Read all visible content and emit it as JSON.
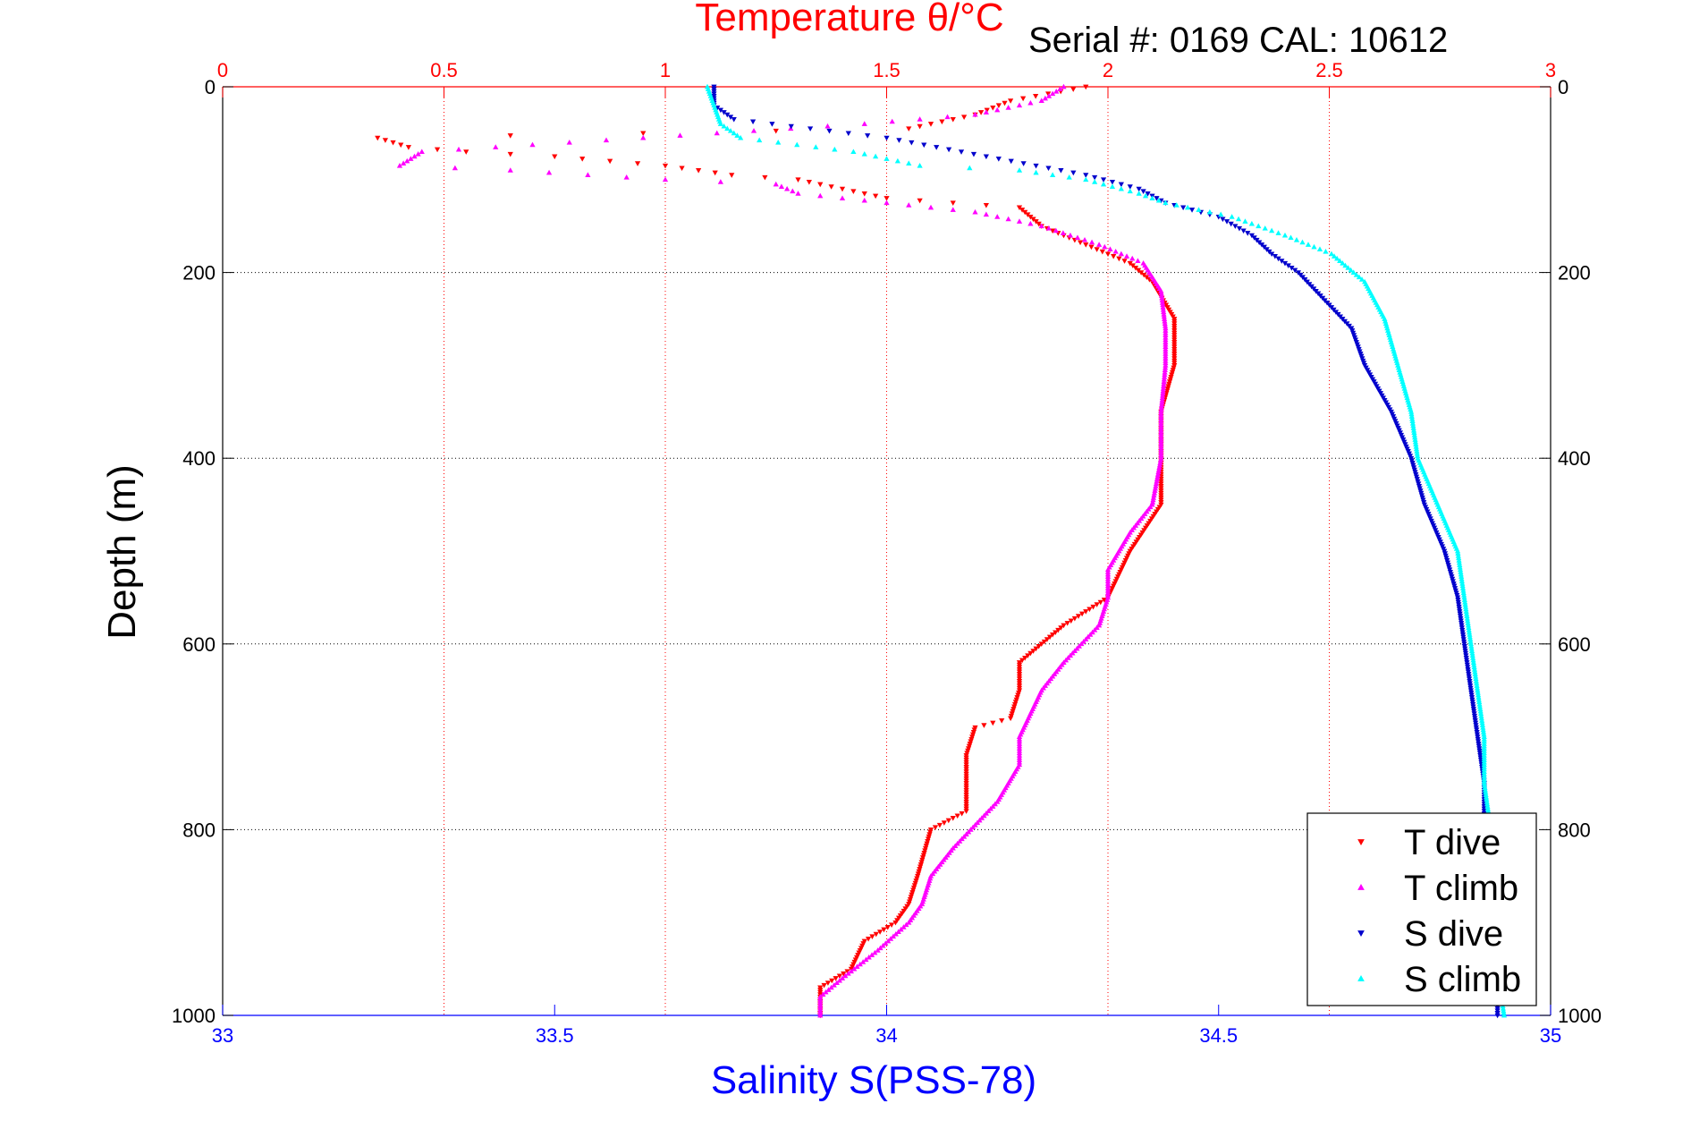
{
  "chart_data": {
    "type": "scatter",
    "title": "Temperature θ/°C",
    "annotation": "Serial #: 0169 CAL: 10612",
    "xlabel_top": "Temperature θ/°C",
    "xlabel_bottom": "Salinity S(PSS-78)",
    "ylabel": "Depth (m)",
    "temperature_axis": {
      "lim": [
        0,
        3
      ],
      "ticks": [
        0,
        0.5,
        1,
        1.5,
        2,
        2.5,
        3
      ],
      "tick_labels": [
        "0",
        "0.5",
        "1",
        "1.5",
        "2",
        "2.5",
        "3"
      ],
      "color": "#ff0000"
    },
    "salinity_axis": {
      "lim": [
        33,
        35
      ],
      "ticks": [
        33,
        33.5,
        34,
        34.5,
        35
      ],
      "tick_labels": [
        "33",
        "33.5",
        "34",
        "34.5",
        "35"
      ],
      "color": "#0000ff"
    },
    "depth_axis": {
      "lim": [
        0,
        1000
      ],
      "reversed": true,
      "ticks": [
        0,
        200,
        400,
        600,
        800,
        1000
      ],
      "tick_labels": [
        "0",
        "200",
        "400",
        "600",
        "800",
        "1000"
      ]
    },
    "grid": true,
    "legend_position": "bottom-right",
    "series": [
      {
        "name": "T dive",
        "axis": "temperature",
        "color": "#ff0000",
        "marker": "triangle-down",
        "points": [
          [
            1.95,
            0
          ],
          [
            1.78,
            15
          ],
          [
            1.7,
            30
          ],
          [
            1.55,
            45
          ],
          [
            0.35,
            55
          ],
          [
            0.42,
            65
          ],
          [
            0.55,
            70
          ],
          [
            0.75,
            75
          ],
          [
            1.0,
            85
          ],
          [
            1.15,
            95
          ],
          [
            1.3,
            100
          ],
          [
            1.4,
            110
          ],
          [
            1.5,
            120
          ],
          [
            1.65,
            125
          ],
          [
            1.8,
            130
          ],
          [
            1.85,
            150
          ],
          [
            1.95,
            170
          ],
          [
            2.05,
            190
          ],
          [
            2.1,
            210
          ],
          [
            2.15,
            250
          ],
          [
            2.15,
            300
          ],
          [
            2.12,
            350
          ],
          [
            2.12,
            400
          ],
          [
            2.12,
            450
          ],
          [
            2.05,
            500
          ],
          [
            2.0,
            550
          ],
          [
            1.9,
            580
          ],
          [
            1.85,
            600
          ],
          [
            1.8,
            620
          ],
          [
            1.8,
            650
          ],
          [
            1.78,
            680
          ],
          [
            1.7,
            690
          ],
          [
            1.68,
            720
          ],
          [
            1.68,
            750
          ],
          [
            1.68,
            780
          ],
          [
            1.6,
            800
          ],
          [
            1.57,
            850
          ],
          [
            1.55,
            880
          ],
          [
            1.52,
            900
          ],
          [
            1.45,
            920
          ],
          [
            1.42,
            950
          ],
          [
            1.35,
            970
          ],
          [
            1.35,
            1000
          ]
        ]
      },
      {
        "name": "T climb",
        "axis": "temperature",
        "color": "#ff00ff",
        "marker": "triangle-up",
        "points": [
          [
            1.9,
            0
          ],
          [
            1.85,
            15
          ],
          [
            1.7,
            30
          ],
          [
            1.45,
            40
          ],
          [
            0.45,
            70
          ],
          [
            0.4,
            85
          ],
          [
            0.65,
            90
          ],
          [
            1.0,
            100
          ],
          [
            1.25,
            105
          ],
          [
            1.3,
            115
          ],
          [
            1.5,
            125
          ],
          [
            1.7,
            135
          ],
          [
            1.85,
            150
          ],
          [
            1.98,
            170
          ],
          [
            2.08,
            190
          ],
          [
            2.12,
            220
          ],
          [
            2.13,
            260
          ],
          [
            2.13,
            300
          ],
          [
            2.12,
            350
          ],
          [
            2.12,
            400
          ],
          [
            2.1,
            450
          ],
          [
            2.05,
            480
          ],
          [
            2.0,
            520
          ],
          [
            2.0,
            550
          ],
          [
            1.98,
            580
          ],
          [
            1.9,
            620
          ],
          [
            1.85,
            650
          ],
          [
            1.82,
            680
          ],
          [
            1.8,
            700
          ],
          [
            1.8,
            730
          ],
          [
            1.75,
            770
          ],
          [
            1.65,
            820
          ],
          [
            1.6,
            850
          ],
          [
            1.58,
            880
          ],
          [
            1.55,
            900
          ],
          [
            1.48,
            930
          ],
          [
            1.4,
            960
          ],
          [
            1.35,
            980
          ],
          [
            1.35,
            1000
          ]
        ]
      },
      {
        "name": "S dive",
        "axis": "salinity",
        "color": "#0000cc",
        "marker": "triangle-down",
        "points": [
          [
            33.74,
            0
          ],
          [
            33.74,
            20
          ],
          [
            33.77,
            35
          ],
          [
            34.0,
            55
          ],
          [
            34.15,
            75
          ],
          [
            34.3,
            95
          ],
          [
            34.38,
            110
          ],
          [
            34.42,
            125
          ],
          [
            34.5,
            140
          ],
          [
            34.55,
            160
          ],
          [
            34.58,
            180
          ],
          [
            34.62,
            200
          ],
          [
            34.66,
            230
          ],
          [
            34.7,
            260
          ],
          [
            34.72,
            300
          ],
          [
            34.76,
            350
          ],
          [
            34.79,
            400
          ],
          [
            34.81,
            450
          ],
          [
            34.84,
            500
          ],
          [
            34.86,
            550
          ],
          [
            34.87,
            600
          ],
          [
            34.88,
            650
          ],
          [
            34.89,
            700
          ],
          [
            34.9,
            750
          ],
          [
            34.9,
            800
          ],
          [
            34.91,
            850
          ],
          [
            34.91,
            900
          ],
          [
            34.92,
            950
          ],
          [
            34.92,
            1000
          ]
        ]
      },
      {
        "name": "S climb",
        "axis": "salinity",
        "color": "#00ffff",
        "marker": "triangle-up",
        "points": [
          [
            33.73,
            0
          ],
          [
            33.74,
            20
          ],
          [
            33.75,
            40
          ],
          [
            33.78,
            55
          ],
          [
            33.95,
            70
          ],
          [
            34.05,
            85
          ],
          [
            34.2,
            90
          ],
          [
            34.3,
            100
          ],
          [
            34.38,
            115
          ],
          [
            34.42,
            125
          ],
          [
            34.52,
            140
          ],
          [
            34.6,
            160
          ],
          [
            34.67,
            180
          ],
          [
            34.72,
            210
          ],
          [
            34.75,
            250
          ],
          [
            34.77,
            300
          ],
          [
            34.79,
            350
          ],
          [
            34.8,
            400
          ],
          [
            34.83,
            450
          ],
          [
            34.86,
            500
          ],
          [
            34.87,
            550
          ],
          [
            34.88,
            600
          ],
          [
            34.89,
            650
          ],
          [
            34.9,
            700
          ],
          [
            34.9,
            750
          ],
          [
            34.91,
            800
          ],
          [
            34.92,
            850
          ],
          [
            34.92,
            900
          ],
          [
            34.92,
            950
          ],
          [
            34.93,
            1000
          ]
        ]
      }
    ]
  }
}
